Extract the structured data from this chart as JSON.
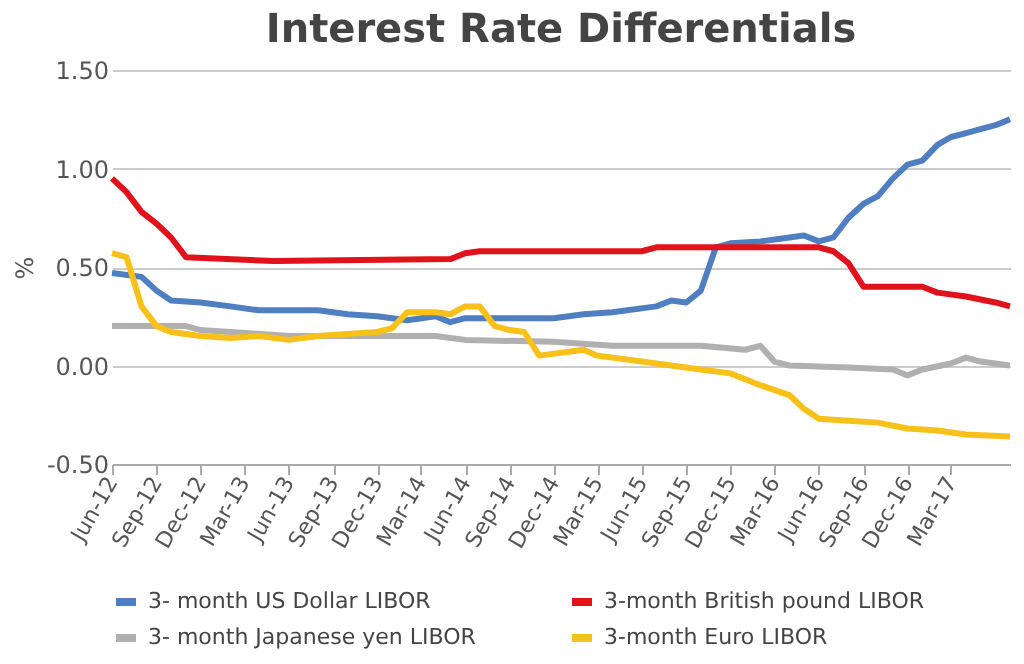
{
  "chart_data": {
    "type": "line",
    "title": "Interest Rate Differentials",
    "ylabel": "%",
    "ylim": [
      -0.5,
      1.5
    ],
    "yticks": [
      {
        "value": -0.5,
        "label": "-0.50"
      },
      {
        "value": 0,
        "label": "0.00"
      },
      {
        "value": 0.5,
        "label": "0.50"
      },
      {
        "value": 1,
        "label": "1.00"
      },
      {
        "value": 1.5,
        "label": "1.50"
      }
    ],
    "xlim": [
      "2012-06",
      "2017-07"
    ],
    "xticks": [
      {
        "value": "2012-06",
        "label": "Jun-12"
      },
      {
        "value": "2012-09",
        "label": "Sep-12"
      },
      {
        "value": "2012-12",
        "label": "Dec-12"
      },
      {
        "value": "2013-03",
        "label": "Mar-13"
      },
      {
        "value": "2013-06",
        "label": "Jun-13"
      },
      {
        "value": "2013-09",
        "label": "Sep-13"
      },
      {
        "value": "2013-12",
        "label": "Dec-13"
      },
      {
        "value": "2014-03",
        "label": "Mar-14"
      },
      {
        "value": "2014-06",
        "label": "Jun-14"
      },
      {
        "value": "2014-09",
        "label": "Sep-14"
      },
      {
        "value": "2014-12",
        "label": "Dec-14"
      },
      {
        "value": "2015-03",
        "label": "Mar-15"
      },
      {
        "value": "2015-06",
        "label": "Jun-15"
      },
      {
        "value": "2015-09",
        "label": "Sep-15"
      },
      {
        "value": "2015-12",
        "label": "Dec-15"
      },
      {
        "value": "2016-03",
        "label": "Mar-16"
      },
      {
        "value": "2016-06",
        "label": "Jun-16"
      },
      {
        "value": "2016-09",
        "label": "Sep-16"
      },
      {
        "value": "2016-12",
        "label": "Dec-16"
      },
      {
        "value": "2017-03",
        "label": "Mar-17"
      }
    ],
    "grid": "y",
    "legend": "bottom",
    "line_style": "solid",
    "series": [
      {
        "name": "3- month US Dollar LIBOR",
        "color": "#4f7fc1",
        "x": [
          "2012-06",
          "2012-08",
          "2012-09",
          "2012-10",
          "2012-12",
          "2013-02",
          "2013-04",
          "2013-08",
          "2013-10",
          "2013-12",
          "2014-02",
          "2014-04",
          "2014-05",
          "2014-06",
          "2014-12",
          "2015-02",
          "2015-04",
          "2015-07",
          "2015-08",
          "2015-09",
          "2015-10",
          "2015-11",
          "2015-12",
          "2016-02",
          "2016-05",
          "2016-06",
          "2016-07",
          "2016-08",
          "2016-09",
          "2016-10",
          "2016-11",
          "2016-12",
          "2017-01",
          "2017-02",
          "2017-03",
          "2017-04",
          "2017-05",
          "2017-06",
          "2017-07"
        ],
        "values": [
          0.47,
          0.45,
          0.38,
          0.33,
          0.32,
          0.3,
          0.28,
          0.28,
          0.26,
          0.25,
          0.23,
          0.25,
          0.22,
          0.24,
          0.24,
          0.26,
          0.27,
          0.3,
          0.33,
          0.32,
          0.38,
          0.6,
          0.62,
          0.63,
          0.66,
          0.63,
          0.65,
          0.75,
          0.82,
          0.86,
          0.95,
          1.02,
          1.04,
          1.12,
          1.16,
          1.18,
          1.2,
          1.22,
          1.25
        ]
      },
      {
        "name": "3-month British pound LIBOR",
        "color": "#e0121b",
        "x": [
          "2012-06",
          "2012-07",
          "2012-08",
          "2012-09",
          "2012-10",
          "2012-11",
          "2013-05",
          "2014-05",
          "2014-06",
          "2014-07",
          "2015-06",
          "2015-07",
          "2016-06",
          "2016-07",
          "2016-08",
          "2016-09",
          "2017-01",
          "2017-02",
          "2017-04",
          "2017-06",
          "2017-07"
        ],
        "values": [
          0.95,
          0.88,
          0.78,
          0.72,
          0.65,
          0.55,
          0.53,
          0.54,
          0.57,
          0.58,
          0.58,
          0.6,
          0.6,
          0.58,
          0.52,
          0.4,
          0.4,
          0.37,
          0.35,
          0.32,
          0.3
        ]
      },
      {
        "name": "3- month Japanese yen LIBOR",
        "color": "#b0b0b0",
        "x": [
          "2012-06",
          "2012-11",
          "2012-12",
          "2013-06",
          "2013-12",
          "2014-04",
          "2014-06",
          "2014-12",
          "2015-04",
          "2015-10",
          "2016-01",
          "2016-02",
          "2016-03",
          "2016-04",
          "2016-08",
          "2016-11",
          "2016-12",
          "2017-01",
          "2017-03",
          "2017-04",
          "2017-05",
          "2017-07"
        ],
        "values": [
          0.2,
          0.2,
          0.18,
          0.15,
          0.15,
          0.15,
          0.13,
          0.12,
          0.1,
          0.1,
          0.08,
          0.1,
          0.02,
          0.0,
          -0.01,
          -0.02,
          -0.05,
          -0.02,
          0.01,
          0.04,
          0.02,
          0.0
        ]
      },
      {
        "name": "3-month Euro LIBOR",
        "color": "#f7c11a",
        "x": [
          "2012-06",
          "2012-07",
          "2012-08",
          "2012-09",
          "2012-10",
          "2012-12",
          "2013-02",
          "2013-04",
          "2013-06",
          "2013-08",
          "2013-10",
          "2013-12",
          "2014-01",
          "2014-02",
          "2014-04",
          "2014-05",
          "2014-06",
          "2014-07",
          "2014-08",
          "2014-09",
          "2014-10",
          "2014-11",
          "2015-01",
          "2015-02",
          "2015-03",
          "2015-06",
          "2015-08",
          "2015-10",
          "2015-12",
          "2016-02",
          "2016-04",
          "2016-05",
          "2016-06",
          "2016-08",
          "2016-10",
          "2016-12",
          "2017-02",
          "2017-04",
          "2017-07"
        ],
        "values": [
          0.57,
          0.55,
          0.3,
          0.2,
          0.17,
          0.15,
          0.14,
          0.15,
          0.13,
          0.15,
          0.16,
          0.17,
          0.19,
          0.27,
          0.27,
          0.26,
          0.3,
          0.3,
          0.2,
          0.18,
          0.17,
          0.05,
          0.07,
          0.08,
          0.05,
          0.02,
          0.0,
          -0.02,
          -0.04,
          -0.1,
          -0.15,
          -0.22,
          -0.27,
          -0.28,
          -0.29,
          -0.32,
          -0.33,
          -0.35,
          -0.36
        ]
      }
    ]
  }
}
